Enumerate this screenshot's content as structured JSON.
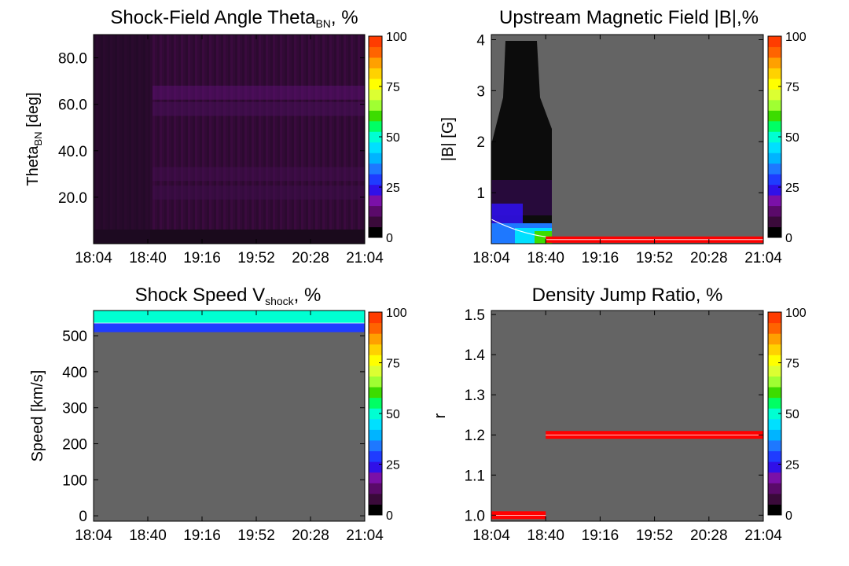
{
  "colorbar": {
    "ticks": [
      0,
      25,
      50,
      75,
      100
    ],
    "colors": [
      "#000000",
      "#3a0a3a",
      "#5a0a6a",
      "#7a10a8",
      "#3010e8",
      "#1f3cff",
      "#1e78ff",
      "#00b4ff",
      "#00e0ff",
      "#00ffd2",
      "#00ff64",
      "#3cdc00",
      "#a0ff32",
      "#dcff32",
      "#ffff00",
      "#ffd200",
      "#ffa000",
      "#ff6400",
      "#ff3c00"
    ]
  },
  "chart_data": [
    {
      "type": "heatmap",
      "title": "Shock-Field Angle Theta",
      "title_sub": "BN",
      "title_suffix": ", %",
      "ylabel": "Theta",
      "ylabel_sub": "BN",
      "ylabel_suffix": " [deg]",
      "x_ticks": [
        "18:04",
        "18:40",
        "19:16",
        "19:52",
        "20:28",
        "21:04"
      ],
      "y_ticks": [
        "20.0",
        "40.0",
        "60.0",
        "80.0"
      ],
      "y_tick_values": [
        20,
        40,
        60,
        80
      ],
      "ylim": [
        0,
        90
      ],
      "background": "#2a0a2a",
      "zlim": [
        0,
        100
      ]
    },
    {
      "type": "heatmap",
      "title": "Upstream Magnetic Field |B|,%",
      "ylabel": "|B| [G]",
      "x_ticks": [
        "18:04",
        "18:40",
        "19:16",
        "19:52",
        "20:28",
        "21:04"
      ],
      "y_ticks": [
        "1",
        "2",
        "3",
        "4"
      ],
      "y_tick_values": [
        1,
        2,
        3,
        4
      ],
      "ylim": [
        0,
        4.1
      ],
      "background": "#646464",
      "zlim": [
        0,
        100
      ],
      "band": {
        "x_start": "18:40",
        "x_end": "21:04",
        "value": 0.08,
        "color": "#ff0000"
      }
    },
    {
      "type": "heatmap",
      "title": "Shock Speed V",
      "title_sub": "shock",
      "title_suffix": ", %",
      "ylabel": "Speed [km/s]",
      "x_ticks": [
        "18:04",
        "18:40",
        "19:16",
        "19:52",
        "20:28",
        "21:04"
      ],
      "y_ticks": [
        "0",
        "100",
        "200",
        "300",
        "400",
        "500"
      ],
      "y_tick_values": [
        0,
        100,
        200,
        300,
        400,
        500
      ],
      "ylim": [
        -15,
        570
      ],
      "background": "#646464",
      "zlim": [
        0,
        100
      ],
      "bands": [
        {
          "y_low": 535,
          "y_high": 570,
          "color": "#00ffd2"
        },
        {
          "y_low": 510,
          "y_high": 535,
          "color": "#1f3cff"
        }
      ]
    },
    {
      "type": "heatmap",
      "title": "Density Jump Ratio, %",
      "ylabel": "r",
      "x_ticks": [
        "18:04",
        "18:40",
        "19:16",
        "19:52",
        "20:28",
        "21:04"
      ],
      "y_ticks": [
        "1.0",
        "1.1",
        "1.2",
        "1.3",
        "1.4",
        "1.5"
      ],
      "y_tick_values": [
        1.0,
        1.1,
        1.2,
        1.3,
        1.4,
        1.5
      ],
      "ylim": [
        0.985,
        1.51
      ],
      "background": "#646464",
      "zlim": [
        0,
        100
      ],
      "bands": [
        {
          "x_start": "18:04",
          "x_end": "18:40",
          "value": 1.0,
          "color": "#ff0000"
        },
        {
          "x_start": "18:40",
          "x_end": "21:04",
          "value": 1.2,
          "color": "#ff0000"
        }
      ]
    }
  ]
}
